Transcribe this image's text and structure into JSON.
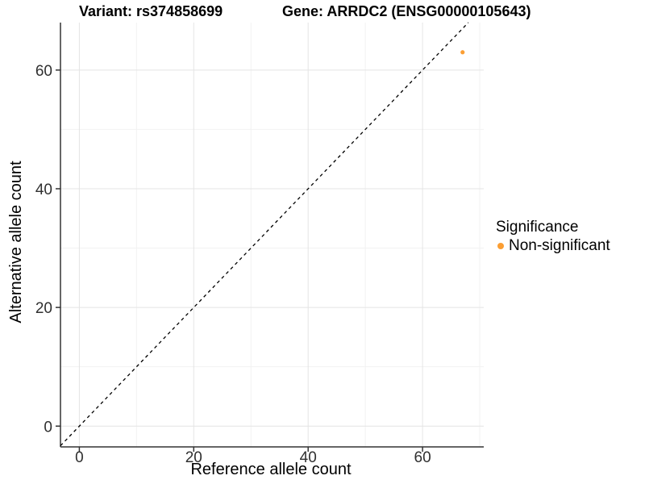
{
  "titles": {
    "variant": "Variant: rs374858699",
    "gene": "Gene: ARRDC2 (ENSG00000105643)"
  },
  "axes": {
    "x_label": "Reference allele count",
    "y_label": "Alternative allele count"
  },
  "legend": {
    "title": "Significance",
    "items": [
      {
        "label": "Non-significant",
        "color": "#FB9E33"
      }
    ]
  },
  "chart_data": {
    "type": "scatter",
    "title": "Variant: rs374858699   Gene: ARRDC2 (ENSG00000105643)",
    "xlabel": "Reference allele count",
    "ylabel": "Alternative allele count",
    "series": [
      {
        "name": "Non-significant",
        "color": "#FB9E33",
        "points": [
          [
            67,
            63
          ]
        ]
      }
    ],
    "identity_line": {
      "slope": 1,
      "intercept": 0,
      "style": "dashed",
      "color": "#000000"
    },
    "xlim": [
      -3.3,
      70.7
    ],
    "ylim": [
      -3.5,
      68
    ],
    "x_ticks": [
      0,
      20,
      40,
      60
    ],
    "y_ticks": [
      0,
      20,
      40,
      60
    ],
    "x_minor": [
      10,
      30,
      50,
      70
    ],
    "y_minor": [
      10,
      30,
      50
    ],
    "grid": true,
    "legend_position": "right",
    "colors": {
      "grid_major": "#E4E4E4",
      "grid_minor": "#F2F2F2",
      "axis_line": "#333333",
      "tick_label": "#303030",
      "point": "#FB9E33"
    }
  }
}
